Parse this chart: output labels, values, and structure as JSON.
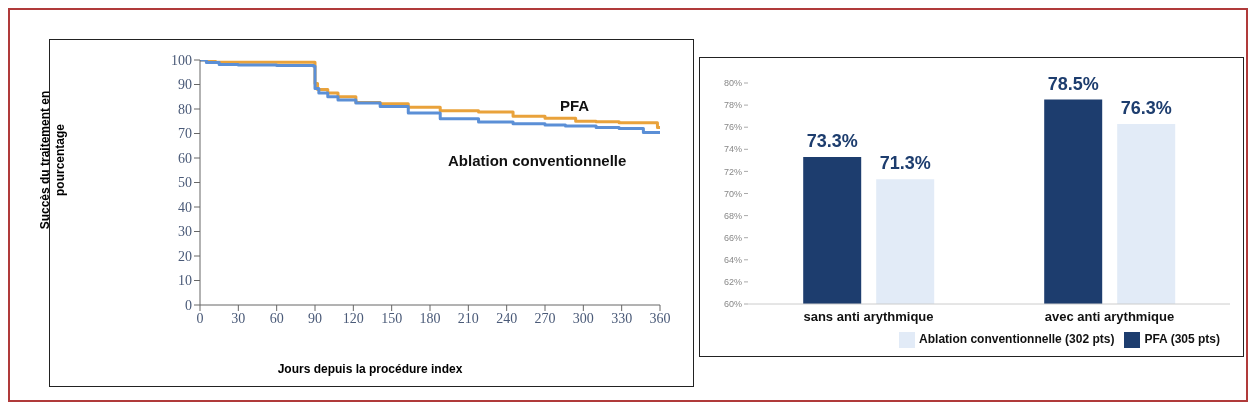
{
  "chart_data": [
    {
      "type": "step",
      "xlabel": "Jours depuis la procédure index",
      "ylabel": "Succès du traitement en pourcentage",
      "xlim": [
        0,
        360
      ],
      "ylim": [
        0,
        100
      ],
      "xticks": [
        0,
        30,
        60,
        90,
        120,
        150,
        180,
        210,
        240,
        270,
        300,
        330,
        360
      ],
      "yticks": [
        0,
        10,
        20,
        30,
        40,
        50,
        60,
        70,
        80,
        90,
        100
      ],
      "grid": false,
      "legend": false,
      "marker": "none",
      "line_style": "solid",
      "series": [
        {
          "name": "PFA",
          "color": "#e9a23b",
          "x": [
            0,
            5,
            12,
            30,
            60,
            89,
            90,
            92,
            100,
            108,
            122,
            141,
            163,
            188,
            218,
            245,
            270,
            294,
            310,
            328,
            340,
            358,
            360
          ],
          "values": [
            100,
            99.5,
            99.1,
            99.1,
            99.1,
            99.1,
            90.4,
            88,
            86.5,
            85,
            82.7,
            82.1,
            80.7,
            79.3,
            78.8,
            77,
            76.2,
            75,
            74.8,
            74.4,
            74.4,
            72.4,
            72.4
          ]
        },
        {
          "name": "Ablation conventionnelle",
          "color": "#5b8fd6",
          "x": [
            0,
            5,
            15,
            30,
            60,
            89,
            90,
            93,
            100,
            108,
            122,
            141,
            163,
            188,
            218,
            245,
            270,
            286,
            310,
            328,
            347,
            360
          ],
          "values": [
            100,
            99,
            98.2,
            98,
            97.8,
            97.5,
            88.4,
            86.5,
            85,
            83.7,
            82.5,
            81,
            78.4,
            76,
            74.7,
            74,
            73.5,
            73.1,
            72.5,
            72,
            70.4,
            70.4
          ]
        }
      ]
    },
    {
      "type": "bar",
      "categories": [
        "sans anti arythmique",
        "avec anti arythmique"
      ],
      "ylim": [
        60,
        80
      ],
      "yticks": [
        {
          "value": 60,
          "label": "60%"
        },
        {
          "value": 62,
          "label": "62%"
        },
        {
          "value": 64,
          "label": "64%"
        },
        {
          "value": 66,
          "label": "66%"
        },
        {
          "value": 68,
          "label": "68%"
        },
        {
          "value": 70,
          "label": "70%"
        },
        {
          "value": 72,
          "label": "72%"
        },
        {
          "value": 74,
          "label": "74%"
        },
        {
          "value": 76,
          "label": "76%"
        },
        {
          "value": 78,
          "label": "78%"
        },
        {
          "value": 80,
          "label": "80%"
        }
      ],
      "grid": false,
      "legend": "bottom right",
      "series": [
        {
          "name": "PFA (305 pts)",
          "color": "#1d3d6e",
          "values": [
            73.3,
            78.5
          ],
          "value_labels": [
            "73.3%",
            "78.5%"
          ]
        },
        {
          "name": "Ablation conventionnelle (302 pts)",
          "color": "#e2ebf7",
          "values": [
            71.3,
            76.3
          ],
          "value_labels": [
            "71.3%",
            "76.3%"
          ]
        }
      ]
    }
  ]
}
